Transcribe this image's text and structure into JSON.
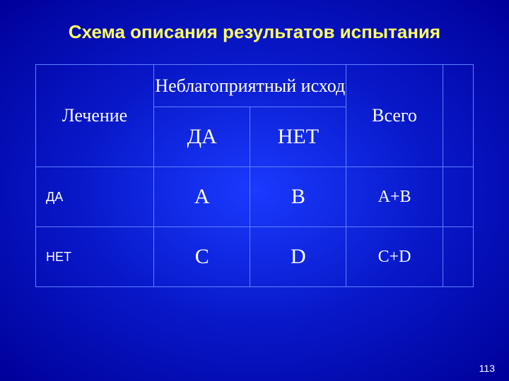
{
  "title": "Схема описания результатов испытания",
  "title_fontsize": 26,
  "table": {
    "header": {
      "treatment": "Лечение",
      "outcome": "Неблагоприятный исход",
      "total": "Всего",
      "header_fontsize": 26
    },
    "subheader": {
      "yes": "ДА",
      "no": "НЕТ",
      "subheader_fontsize": 30
    },
    "rows": [
      {
        "label": "ДА",
        "label_fontsize": 18,
        "c1": "A",
        "c2": "B",
        "sum": "A+B",
        "cell_fontsize": 30,
        "sum_fontsize": 24
      },
      {
        "label": "НЕТ",
        "label_fontsize": 18,
        "c1": "C",
        "c2": "D",
        "sum": "C+D",
        "cell_fontsize": 30,
        "sum_fontsize": 24
      }
    ],
    "border_color": "#6080ff"
  },
  "page_number": "113",
  "page_number_fontsize": 14,
  "colors": {
    "title": "#ffff66",
    "text": "#ffffff",
    "bg_center": "#1a3aff",
    "bg_mid": "#0818c8",
    "bg_edge": "#000099"
  }
}
